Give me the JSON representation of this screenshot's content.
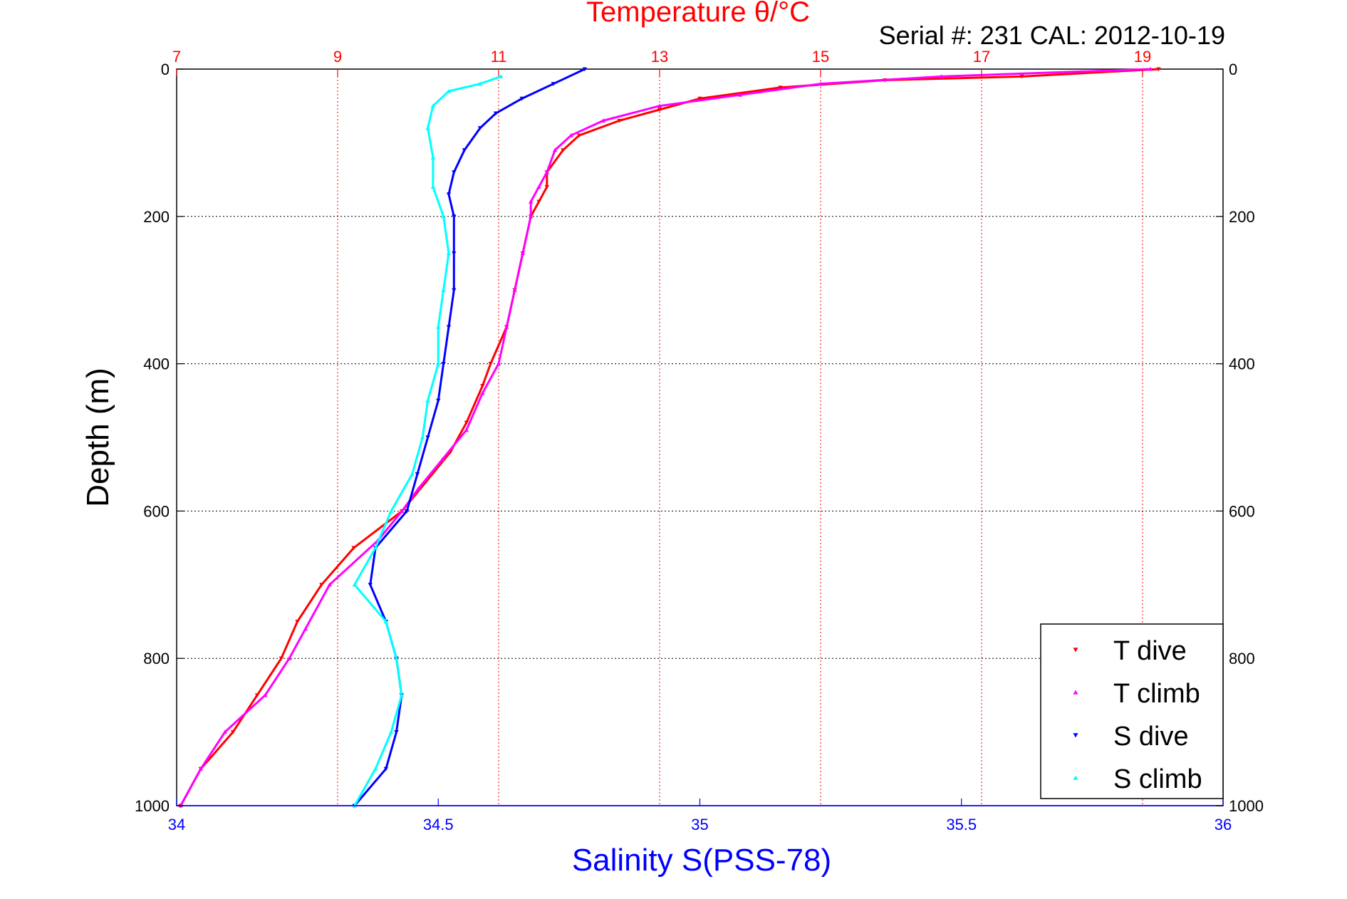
{
  "chart_data": {
    "type": "scatter",
    "title_top": "Temperature θ/°C",
    "serial_label": "Serial #: 231  CAL: 2012-10-19",
    "xlabel_bottom": "Salinity S(PSS-78)",
    "ylabel": "Depth (m)",
    "temperature_axis": {
      "range": [
        7,
        20
      ],
      "ticks": [
        "7",
        "9",
        "11",
        "13",
        "15",
        "17",
        "19"
      ]
    },
    "salinity_axis": {
      "range": [
        34,
        36
      ],
      "ticks": [
        "34",
        "34.5",
        "35",
        "35.5",
        "36"
      ]
    },
    "depth_axis": {
      "range": [
        0,
        1000
      ],
      "reversed": true,
      "ticks": [
        "0",
        "200",
        "400",
        "600",
        "800",
        "1000"
      ]
    },
    "grid": true,
    "legend_position": "bottom-right",
    "colors": {
      "temperature_axis": "#ff0000",
      "salinity_axis": "#0000ff",
      "text": "#000000"
    },
    "series": [
      {
        "name": "T dive",
        "axis": "temperature",
        "color": "#ff0000",
        "marker": "triangle-down",
        "points": [
          [
            19.2,
            0
          ],
          [
            17.5,
            10
          ],
          [
            15.8,
            15
          ],
          [
            14.5,
            25
          ],
          [
            13.5,
            40
          ],
          [
            13.0,
            55
          ],
          [
            12.5,
            70
          ],
          [
            12.0,
            90
          ],
          [
            11.8,
            110
          ],
          [
            11.6,
            140
          ],
          [
            11.6,
            160
          ],
          [
            11.5,
            180
          ],
          [
            11.4,
            200
          ],
          [
            11.3,
            250
          ],
          [
            11.2,
            300
          ],
          [
            11.1,
            350
          ],
          [
            10.9,
            400
          ],
          [
            10.8,
            430
          ],
          [
            10.6,
            480
          ],
          [
            10.4,
            520
          ],
          [
            10.1,
            560
          ],
          [
            9.8,
            600
          ],
          [
            9.2,
            650
          ],
          [
            8.8,
            700
          ],
          [
            8.5,
            750
          ],
          [
            8.3,
            800
          ],
          [
            8.0,
            850
          ],
          [
            7.7,
            900
          ],
          [
            7.3,
            950
          ],
          [
            7.05,
            1000
          ]
        ]
      },
      {
        "name": "T climb",
        "axis": "temperature",
        "color": "#ff00ff",
        "marker": "triangle-up",
        "points": [
          [
            19.1,
            0
          ],
          [
            16.5,
            10
          ],
          [
            15.0,
            20
          ],
          [
            14.0,
            35
          ],
          [
            13.0,
            50
          ],
          [
            12.3,
            70
          ],
          [
            11.9,
            90
          ],
          [
            11.7,
            110
          ],
          [
            11.6,
            140
          ],
          [
            11.5,
            160
          ],
          [
            11.4,
            180
          ],
          [
            11.4,
            200
          ],
          [
            11.3,
            250
          ],
          [
            11.2,
            300
          ],
          [
            11.1,
            350
          ],
          [
            11.0,
            400
          ],
          [
            10.8,
            440
          ],
          [
            10.6,
            490
          ],
          [
            10.3,
            530
          ],
          [
            10.0,
            570
          ],
          [
            9.8,
            600
          ],
          [
            9.5,
            640
          ],
          [
            8.9,
            700
          ],
          [
            8.6,
            760
          ],
          [
            8.4,
            800
          ],
          [
            8.1,
            850
          ],
          [
            7.6,
            900
          ],
          [
            7.3,
            950
          ],
          [
            7.05,
            1000
          ]
        ]
      },
      {
        "name": "S dive",
        "axis": "salinity",
        "color": "#0000ff",
        "marker": "triangle-down",
        "points": [
          [
            34.78,
            0
          ],
          [
            34.72,
            20
          ],
          [
            34.66,
            40
          ],
          [
            34.61,
            60
          ],
          [
            34.58,
            80
          ],
          [
            34.55,
            110
          ],
          [
            34.53,
            140
          ],
          [
            34.52,
            170
          ],
          [
            34.53,
            200
          ],
          [
            34.53,
            250
          ],
          [
            34.53,
            300
          ],
          [
            34.52,
            350
          ],
          [
            34.51,
            400
          ],
          [
            34.5,
            450
          ],
          [
            34.48,
            500
          ],
          [
            34.46,
            550
          ],
          [
            34.44,
            600
          ],
          [
            34.38,
            650
          ],
          [
            34.37,
            700
          ],
          [
            34.4,
            750
          ],
          [
            34.42,
            800
          ],
          [
            34.43,
            850
          ],
          [
            34.42,
            900
          ],
          [
            34.4,
            950
          ],
          [
            34.34,
            1000
          ]
        ]
      },
      {
        "name": "S climb",
        "axis": "salinity",
        "color": "#00ffff",
        "marker": "triangle-up",
        "points": [
          [
            34.62,
            10
          ],
          [
            34.58,
            20
          ],
          [
            34.52,
            30
          ],
          [
            34.49,
            50
          ],
          [
            34.48,
            80
          ],
          [
            34.49,
            120
          ],
          [
            34.49,
            160
          ],
          [
            34.51,
            200
          ],
          [
            34.52,
            250
          ],
          [
            34.51,
            300
          ],
          [
            34.5,
            350
          ],
          [
            34.5,
            400
          ],
          [
            34.48,
            450
          ],
          [
            34.47,
            500
          ],
          [
            34.45,
            550
          ],
          [
            34.41,
            600
          ],
          [
            34.38,
            650
          ],
          [
            34.34,
            700
          ],
          [
            34.4,
            750
          ],
          [
            34.42,
            800
          ],
          [
            34.43,
            850
          ],
          [
            34.41,
            900
          ],
          [
            34.38,
            950
          ],
          [
            34.34,
            1000
          ]
        ]
      }
    ]
  }
}
